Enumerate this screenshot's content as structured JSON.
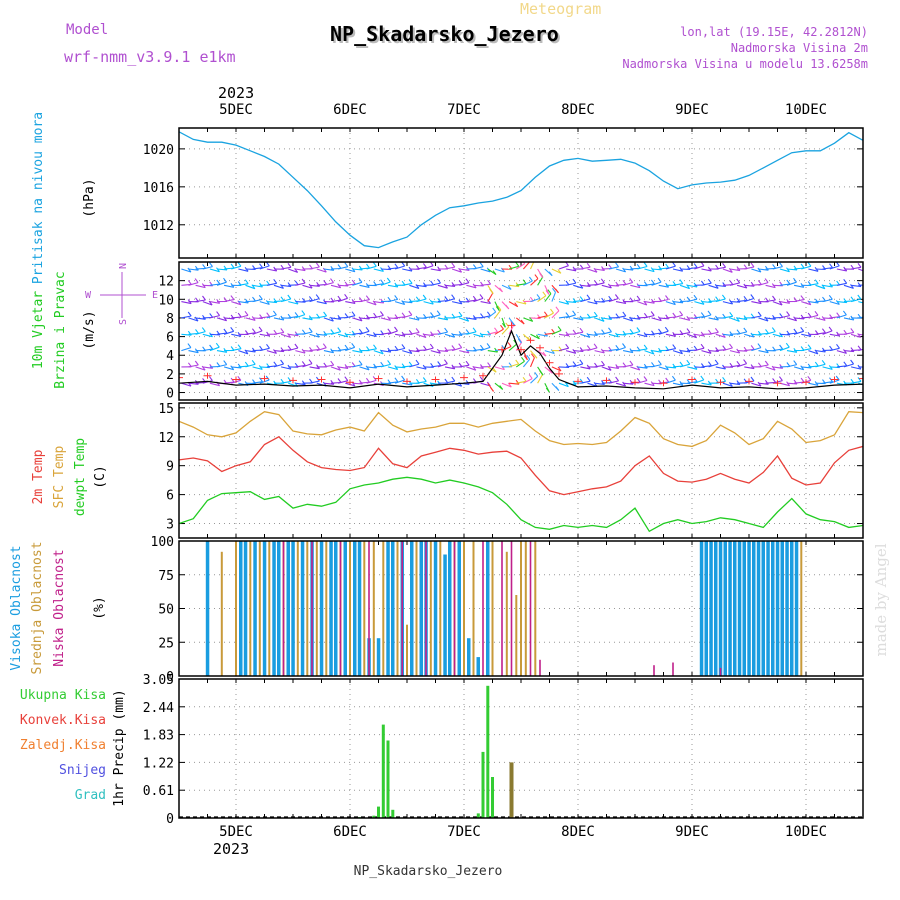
{
  "header": {
    "model_label": "Model",
    "model_name": "wrf-nmm_v3.9.1 e1km",
    "meteogram_label": "Meteogram",
    "station": "NP_Skadarsko_Jezero",
    "lonlat": "lon,lat (19.15E, 42.2812N)",
    "elevation": "Nadmorska Visina 2m",
    "model_elevation": "Nadmorska Visina u modelu 13.6258m"
  },
  "footer": {
    "station": "NP_Skadarsko_Jezero",
    "watermark": "made by Angel"
  },
  "colors": {
    "pressure": "#1aa3e0",
    "temp2m": "#e8403a",
    "sfc": "#d9a43a",
    "dew": "#22cc22",
    "high": "#1a9de0",
    "mid": "#c89a3a",
    "low": "#c0208a",
    "ukupna": "#33cc33",
    "konvek": "#e8403a",
    "zaledj": "#f08030",
    "snijeg": "#5050e0",
    "grad": "#30c0c0",
    "grid": "#999999",
    "purple": "#b050d0"
  },
  "chart_data": [
    {
      "type": "line",
      "title": "",
      "ylabel": [
        "Pritisak na nivou mora",
        "(hPa)"
      ],
      "ylim": [
        1008.5,
        1022.2
      ],
      "yticks": [
        1012,
        1016,
        1020
      ],
      "x_day_labels": [
        "5DEC",
        "6DEC",
        "7DEC",
        "8DEC",
        "9DEC",
        "10DEC"
      ],
      "year_label": "2023",
      "x_unit": "hours since 4 DEC 12 UTC",
      "series": [
        {
          "name": "",
          "x": [
            0,
            3,
            6,
            9,
            12,
            15,
            18,
            21,
            24,
            27,
            30,
            33,
            36,
            39,
            42,
            45,
            48,
            51,
            54,
            57,
            60,
            63,
            66,
            69,
            72,
            75,
            78,
            81,
            84,
            87,
            90,
            93,
            96,
            99,
            102,
            105,
            108,
            111,
            114,
            117,
            120,
            123,
            126,
            129,
            132,
            135,
            138,
            141,
            144
          ],
          "values": [
            1021.8,
            1021.0,
            1020.7,
            1020.7,
            1020.4,
            1019.8,
            1019.2,
            1018.4,
            1017.0,
            1015.6,
            1014.0,
            1012.3,
            1010.9,
            1009.8,
            1009.6,
            1010.2,
            1010.7,
            1012.0,
            1013.0,
            1013.8,
            1014.0,
            1014.3,
            1014.5,
            1014.9,
            1015.6,
            1017.0,
            1018.2,
            1018.8,
            1019.0,
            1018.7,
            1018.8,
            1018.9,
            1018.5,
            1017.7,
            1016.6,
            1015.8,
            1016.2,
            1016.4,
            1016.5,
            1016.7,
            1017.2,
            1018.0,
            1018.8,
            1019.6,
            1019.8,
            1019.8,
            1020.6,
            1021.7,
            1020.9
          ]
        }
      ]
    },
    {
      "type": "line",
      "title": "",
      "ylabel": [
        "10m Vjetar",
        "Brzina i Pravac",
        "(m/s)"
      ],
      "ylim": [
        -0.8,
        14
      ],
      "yticks": [
        0,
        2,
        4,
        6,
        8,
        10,
        12
      ],
      "compass": {
        "n": "N",
        "s": "S",
        "e": "E",
        "w": "W"
      },
      "series": [
        {
          "name": "",
          "x": [
            0,
            6,
            12,
            18,
            24,
            30,
            36,
            42,
            48,
            54,
            60,
            64,
            68,
            70,
            72,
            74,
            76,
            78,
            80,
            84,
            90,
            96,
            102,
            108,
            114,
            120,
            126,
            132,
            138,
            144
          ],
          "values": [
            1.0,
            1.2,
            0.8,
            0.9,
            0.7,
            0.8,
            0.5,
            0.9,
            0.6,
            0.8,
            1.0,
            1.2,
            4.0,
            6.6,
            4.0,
            5.0,
            4.2,
            2.6,
            1.4,
            0.6,
            0.7,
            0.5,
            0.4,
            0.8,
            0.5,
            0.6,
            0.4,
            0.5,
            0.8,
            0.9
          ]
        }
      ]
    },
    {
      "type": "line",
      "title": "",
      "ylabel": [
        "2m Temp",
        "SFC Temp",
        "dewpt Temp",
        "(C)"
      ],
      "ylim": [
        1.5,
        15.5
      ],
      "yticks": [
        3,
        6,
        9,
        12,
        15
      ],
      "series": [
        {
          "name": "2m Temp",
          "x": [
            0,
            3,
            6,
            9,
            12,
            15,
            18,
            21,
            24,
            27,
            30,
            33,
            36,
            39,
            42,
            45,
            48,
            51,
            54,
            57,
            60,
            63,
            66,
            69,
            72,
            75,
            78,
            81,
            84,
            87,
            90,
            93,
            96,
            99,
            102,
            105,
            108,
            111,
            114,
            117,
            120,
            123,
            126,
            129,
            132,
            135,
            138,
            141,
            144
          ],
          "values": [
            9.6,
            9.8,
            9.5,
            8.4,
            9.0,
            9.4,
            11.2,
            12.0,
            10.6,
            9.4,
            8.8,
            8.6,
            8.5,
            8.8,
            10.8,
            9.2,
            8.8,
            10.0,
            10.4,
            10.8,
            10.6,
            10.2,
            10.4,
            10.5,
            9.8,
            8.0,
            6.4,
            6.0,
            6.3,
            6.6,
            6.8,
            7.4,
            9.0,
            10.0,
            8.2,
            7.4,
            7.3,
            7.6,
            8.2,
            7.6,
            7.2,
            8.3,
            10.0,
            7.7,
            7.0,
            7.2,
            9.3,
            10.6,
            11.0
          ]
        },
        {
          "name": "SFC Temp",
          "x": [
            0,
            3,
            6,
            9,
            12,
            15,
            18,
            21,
            24,
            27,
            30,
            33,
            36,
            39,
            42,
            45,
            48,
            51,
            54,
            57,
            60,
            63,
            66,
            69,
            72,
            75,
            78,
            81,
            84,
            87,
            90,
            93,
            96,
            99,
            102,
            105,
            108,
            111,
            114,
            117,
            120,
            123,
            126,
            129,
            132,
            135,
            138,
            141,
            144
          ],
          "values": [
            13.6,
            13.0,
            12.2,
            12.0,
            12.4,
            13.6,
            14.6,
            14.3,
            12.6,
            12.3,
            12.2,
            12.7,
            13.0,
            12.6,
            14.5,
            13.2,
            12.5,
            12.8,
            13.0,
            13.4,
            13.4,
            13.0,
            13.4,
            13.6,
            13.8,
            12.6,
            11.6,
            11.2,
            11.3,
            11.2,
            11.4,
            12.6,
            14.0,
            13.4,
            11.8,
            11.2,
            11.0,
            11.6,
            13.2,
            12.4,
            11.2,
            11.8,
            13.6,
            12.8,
            11.4,
            11.6,
            12.2,
            14.6,
            14.5
          ]
        },
        {
          "name": "dewpt Temp",
          "x": [
            0,
            3,
            6,
            9,
            12,
            15,
            18,
            21,
            24,
            27,
            30,
            33,
            36,
            39,
            42,
            45,
            48,
            51,
            54,
            57,
            60,
            63,
            66,
            69,
            72,
            75,
            78,
            81,
            84,
            87,
            90,
            93,
            96,
            99,
            102,
            105,
            108,
            111,
            114,
            117,
            120,
            123,
            126,
            129,
            132,
            135,
            138,
            141,
            144
          ],
          "values": [
            3.0,
            3.5,
            5.4,
            6.1,
            6.2,
            6.3,
            5.5,
            5.8,
            4.6,
            5.0,
            4.8,
            5.2,
            6.6,
            7.0,
            7.2,
            7.6,
            7.8,
            7.6,
            7.2,
            7.5,
            7.2,
            6.8,
            6.2,
            5.0,
            3.4,
            2.6,
            2.4,
            2.8,
            2.6,
            2.8,
            2.6,
            3.4,
            4.6,
            2.2,
            3.0,
            3.4,
            3.0,
            3.2,
            3.6,
            3.4,
            3.0,
            2.6,
            4.2,
            5.6,
            4.0,
            3.4,
            3.2,
            2.6,
            2.8
          ]
        }
      ]
    },
    {
      "type": "bar",
      "title": "",
      "ylabel": [
        "Visoka Oblacnost",
        "Srednja Oblacnost",
        "Niska Oblacnost",
        "(%)"
      ],
      "ylim": [
        0,
        100
      ],
      "yticks": [
        0,
        25,
        50,
        75,
        100
      ],
      "series": [
        {
          "name": "Visoka Oblacnost",
          "x": [
            6,
            13,
            14,
            16,
            18,
            20,
            21,
            23,
            24,
            26,
            28,
            30,
            32,
            33,
            35,
            37,
            38,
            40,
            42,
            44,
            45,
            47,
            49,
            51,
            52,
            54,
            56,
            57,
            59,
            61,
            63,
            65,
            110,
            111,
            112,
            113,
            114,
            115,
            116,
            117,
            118,
            119,
            120,
            121,
            122,
            123,
            124,
            125,
            126,
            127,
            128,
            129,
            130
          ],
          "values": [
            100,
            100,
            100,
            100,
            100,
            100,
            100,
            100,
            100,
            100,
            100,
            100,
            100,
            100,
            100,
            100,
            100,
            28,
            28,
            100,
            100,
            100,
            100,
            100,
            100,
            100,
            90,
            100,
            100,
            28,
            14,
            100,
            100,
            100,
            100,
            100,
            100,
            100,
            100,
            100,
            100,
            100,
            100,
            100,
            100,
            100,
            100,
            100,
            100,
            100,
            100,
            100,
            100
          ]
        },
        {
          "name": "Srednja Oblacnost",
          "x": [
            9,
            12,
            15,
            17,
            19,
            22,
            25,
            27,
            29,
            31,
            34,
            36,
            39,
            41,
            43,
            46,
            48,
            50,
            53,
            55,
            58,
            60,
            62,
            66,
            69,
            71,
            72,
            73,
            75,
            131
          ],
          "values": [
            92,
            100,
            100,
            100,
            100,
            100,
            100,
            100,
            100,
            100,
            100,
            100,
            100,
            100,
            100,
            100,
            38,
            100,
            100,
            100,
            100,
            100,
            100,
            100,
            92,
            60,
            100,
            100,
            100,
            100
          ]
        },
        {
          "name": "Niska Oblacnost",
          "x": [
            22,
            28,
            34,
            40,
            47,
            52,
            58,
            64,
            68,
            70,
            74,
            76,
            100,
            104,
            114
          ],
          "values": [
            100,
            100,
            100,
            100,
            100,
            100,
            100,
            100,
            100,
            100,
            100,
            12,
            8,
            10,
            6
          ]
        }
      ]
    },
    {
      "type": "bar",
      "title": "",
      "ylabel": [
        "1hr Precip (mm)"
      ],
      "legend": [
        "Ukupna Kisa",
        "Konvek.Kisa",
        "Zaledj.Kisa",
        "Snijeg",
        "Grad"
      ],
      "ylim": [
        0,
        3.05
      ],
      "yticks": [
        0,
        0.61,
        1.22,
        1.83,
        2.44,
        3.05
      ],
      "series": [
        {
          "name": "Ukupna Kisa",
          "x": [
            38,
            41,
            42,
            43,
            44,
            45,
            63,
            64,
            65,
            66
          ],
          "values": [
            0.02,
            0.05,
            0.25,
            2.05,
            1.7,
            0.18,
            0.1,
            1.45,
            2.9,
            0.9
          ]
        },
        {
          "name": "Zaledj.Kisa",
          "x": [
            70
          ],
          "values": [
            1.22
          ]
        }
      ]
    }
  ]
}
